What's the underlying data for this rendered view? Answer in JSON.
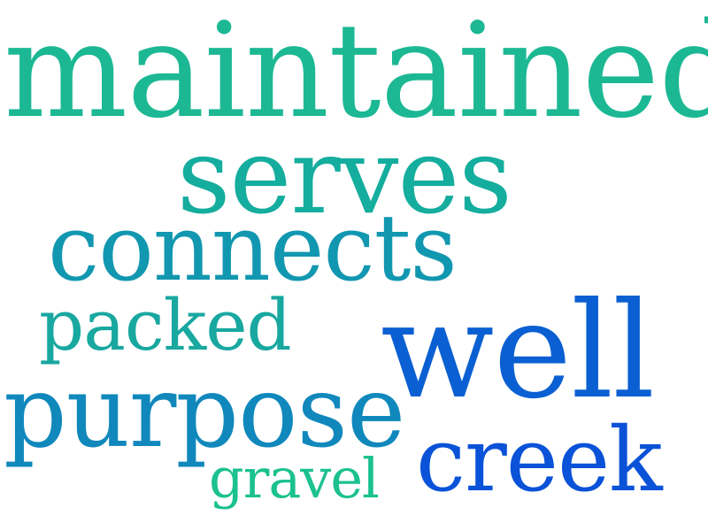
{
  "words": [
    {
      "text": "maintained",
      "color": "#1cb894"
    },
    {
      "text": "serves",
      "color": "#14ad9e"
    },
    {
      "text": "connects",
      "color": "#1297b0"
    },
    {
      "text": "packed",
      "color": "#18a8a0"
    },
    {
      "text": "well",
      "color": "#0a60d2"
    },
    {
      "text": "purpose",
      "color": "#1088bc"
    },
    {
      "text": "creek",
      "color": "#0a52d8"
    },
    {
      "text": "gravel",
      "color": "#1bc18e"
    }
  ]
}
